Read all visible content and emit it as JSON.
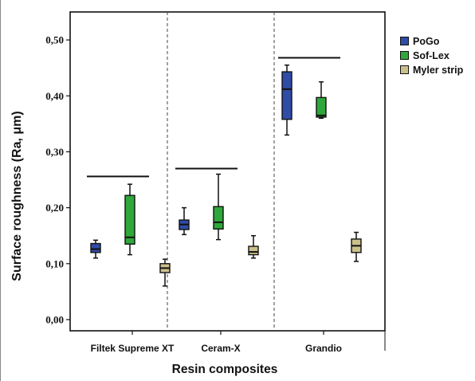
{
  "chart_data": {
    "type": "boxplot",
    "xlabel": "Resin composites",
    "ylabel": "Surface roughness (Ra, μm)",
    "ylim": [
      -0.02,
      0.55
    ],
    "y_ticks": [
      0.0,
      0.1,
      0.2,
      0.3,
      0.4,
      0.5
    ],
    "y_tick_labels": [
      "0,00",
      "0,10",
      "0,20",
      "0,30",
      "0,40",
      "0,50"
    ],
    "categories": [
      "Filtek Supreme XT",
      "Ceram-X",
      "Grandio"
    ],
    "legend_position": "right",
    "group_separators": "dashed",
    "series": [
      {
        "name": "PoGo",
        "color": "#2f4ca6",
        "boxes": [
          {
            "min": 0.11,
            "q1": 0.12,
            "median": 0.126,
            "q3": 0.136,
            "max": 0.142
          },
          {
            "min": 0.152,
            "q1": 0.161,
            "median": 0.17,
            "q3": 0.178,
            "max": 0.2
          },
          {
            "min": 0.33,
            "q1": 0.358,
            "median": 0.412,
            "q3": 0.443,
            "max": 0.455
          }
        ]
      },
      {
        "name": "Sof-Lex",
        "color": "#2ea83a",
        "boxes": [
          {
            "min": 0.116,
            "q1": 0.135,
            "median": 0.147,
            "q3": 0.222,
            "max": 0.242
          },
          {
            "min": 0.143,
            "q1": 0.162,
            "median": 0.174,
            "q3": 0.202,
            "max": 0.26
          },
          {
            "min": 0.36,
            "q1": 0.362,
            "median": 0.365,
            "q3": 0.397,
            "max": 0.425
          }
        ]
      },
      {
        "name": "Myler strip",
        "color": "#cbbf8c",
        "boxes": [
          {
            "min": 0.06,
            "q1": 0.084,
            "median": 0.092,
            "q3": 0.1,
            "max": 0.108
          },
          {
            "min": 0.11,
            "q1": 0.116,
            "median": 0.121,
            "q3": 0.131,
            "max": 0.15
          },
          {
            "min": 0.104,
            "q1": 0.12,
            "median": 0.132,
            "q3": 0.144,
            "max": 0.156
          }
        ]
      }
    ],
    "reference_lines": [
      {
        "category": "Filtek Supreme XT",
        "y": 0.256
      },
      {
        "category": "Ceram-X",
        "y": 0.27
      },
      {
        "category": "Grandio",
        "y": 0.468
      }
    ]
  }
}
